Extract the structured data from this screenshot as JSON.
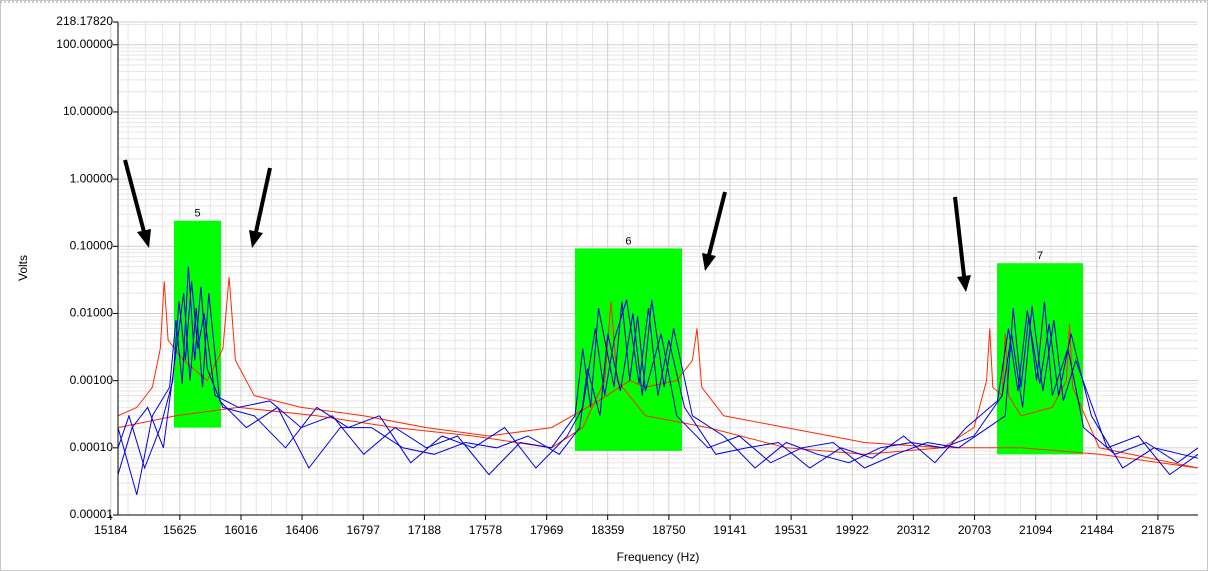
{
  "chart_data": {
    "type": "line",
    "x_label": "Frequency (Hz)",
    "y_label": "Volts",
    "log_y": true,
    "grid": true,
    "xlim": [
      15230,
      22131
    ],
    "ylim": [
      1e-05,
      218.1782
    ],
    "xticks": [
      15184,
      15625,
      16016,
      16406,
      16797,
      17188,
      17578,
      17969,
      18359,
      18750,
      19141,
      19531,
      19922,
      20312,
      20703,
      21094,
      21484,
      21875
    ],
    "yticks": [
      1e-05,
      {
        "value": 0.0001,
        "label": "0.00010"
      },
      {
        "value": 0.001,
        "label": "0.00100"
      },
      {
        "value": 0.01,
        "label": "0.01000"
      },
      {
        "value": 0.1,
        "label": "0.10000"
      },
      {
        "value": 1,
        "label": "1.00000"
      },
      {
        "value": 10,
        "label": "10.00000"
      },
      {
        "value": 100,
        "label": "100.00000"
      },
      {
        "value": 218.1782,
        "label": "218.17820"
      }
    ],
    "bands": [
      {
        "label": "5",
        "color": "#00ff00",
        "x0": 15588,
        "x1": 15888,
        "top": 0.24,
        "bottom": 0.0002
      },
      {
        "label": "6",
        "color": "#00ff00",
        "x0": 18150,
        "x1": 18834,
        "top": 0.093,
        "bottom": 9e-05
      },
      {
        "label": "7",
        "color": "#00ff00",
        "x0": 20847,
        "x1": 21396,
        "top": 0.056,
        "bottom": 8e-05
      }
    ],
    "series": [
      {
        "color": "#ff2a00",
        "x": [
          15230,
          15350,
          15450,
          15500,
          15525,
          15550,
          15650,
          15800,
          15900,
          15940,
          15980,
          16100,
          16400,
          16800,
          17200,
          17600,
          18000,
          18300,
          18500,
          18600,
          18800,
          18900,
          18930,
          18960,
          19100,
          19500,
          20000,
          20500,
          21000,
          21500,
          22131
        ],
        "values": [
          0.0003,
          0.0004,
          0.0008,
          0.003,
          0.03,
          0.004,
          0.002,
          0.001,
          0.003,
          0.035,
          0.002,
          0.0006,
          0.0004,
          0.0003,
          0.0002,
          0.00015,
          0.0002,
          0.0005,
          0.001,
          0.0008,
          0.001,
          0.002,
          0.006,
          0.0008,
          0.0003,
          0.0002,
          0.00012,
          0.0001,
          0.0001,
          8e-05,
          5e-05
        ]
      },
      {
        "color": "#ff2a00",
        "x": [
          15230,
          15600,
          16000,
          16500,
          17000,
          17500,
          18000,
          18200,
          18340,
          18380,
          18420,
          18600,
          19000,
          19500,
          20000,
          20500,
          20700,
          20780,
          20800,
          20820,
          20880,
          20900,
          20920,
          21000,
          21200,
          21290,
          21310,
          21330,
          21500,
          22131
        ],
        "values": [
          0.0002,
          0.0003,
          0.0004,
          0.0003,
          0.0002,
          0.00015,
          0.0001,
          0.0002,
          0.001,
          0.015,
          0.001,
          0.0003,
          0.0002,
          0.0001,
          8e-05,
          0.0001,
          0.0002,
          0.001,
          0.006,
          0.0008,
          0.0006,
          0.005,
          0.0006,
          0.0003,
          0.0004,
          0.001,
          0.007,
          0.0008,
          0.0001,
          5e-05
        ]
      },
      {
        "color": "#0000dd",
        "x": [
          15230,
          15300,
          15400,
          15500,
          15580,
          15620,
          15660,
          15700,
          15740,
          15780,
          15850,
          16000,
          16200,
          16400,
          16600,
          16800,
          17000,
          17200,
          17400,
          17600,
          17800,
          18000,
          18150,
          18200,
          18250,
          18300,
          18400,
          18450,
          18500,
          18550,
          18600,
          18700,
          18800,
          19000,
          19200,
          19400,
          19600,
          19800,
          20000,
          20200,
          20400,
          20600,
          20900,
          20950,
          21000,
          21050,
          21100,
          21150,
          21200,
          21300,
          21400,
          21600,
          21800,
          22000,
          22131
        ],
        "values": [
          0.0001,
          0.0003,
          5e-05,
          0.0002,
          0.001,
          0.015,
          0.002,
          0.03,
          0.003,
          0.01,
          0.0006,
          0.0004,
          0.0005,
          0.0002,
          0.0003,
          8e-05,
          0.0002,
          0.0001,
          0.00015,
          4e-05,
          0.00012,
          0.0001,
          0.0003,
          0.003,
          0.0004,
          0.012,
          0.0008,
          0.015,
          0.001,
          0.009,
          0.0007,
          0.005,
          0.0003,
          0.0001,
          0.00015,
          6e-05,
          0.0001,
          0.00012,
          5e-05,
          8e-05,
          0.00012,
          0.0001,
          0.0003,
          0.012,
          0.0008,
          0.009,
          0.001,
          0.015,
          0.0006,
          0.003,
          0.0002,
          8e-05,
          0.00012,
          6e-05,
          0.0001
        ]
      },
      {
        "color": "#0000dd",
        "x": [
          15230,
          15350,
          15450,
          15560,
          15600,
          15640,
          15680,
          15720,
          15760,
          15800,
          15900,
          16100,
          16300,
          16500,
          16700,
          16900,
          17100,
          17300,
          17500,
          17700,
          17900,
          18100,
          18200,
          18280,
          18340,
          18400,
          18480,
          18560,
          18620,
          18680,
          18750,
          18850,
          19050,
          19250,
          19450,
          19650,
          19850,
          20050,
          20250,
          20450,
          20650,
          20850,
          20920,
          20980,
          21040,
          21120,
          21180,
          21240,
          21320,
          21450,
          21650,
          21850,
          22131
        ],
        "values": [
          0.0002,
          2e-05,
          0.0003,
          0.0008,
          0.008,
          0.0009,
          0.05,
          0.002,
          0.025,
          0.0015,
          0.0004,
          0.0003,
          0.0001,
          0.0004,
          0.0002,
          0.0003,
          6e-05,
          0.00015,
          0.0001,
          0.0002,
          5e-05,
          0.00015,
          0.0004,
          0.006,
          0.0006,
          0.004,
          0.016,
          0.0009,
          0.012,
          0.0006,
          0.004,
          0.0004,
          8e-05,
          0.0001,
          0.00012,
          5e-05,
          0.0001,
          7e-05,
          0.00015,
          6e-05,
          0.0002,
          0.0005,
          0.006,
          0.0007,
          0.011,
          0.0009,
          0.007,
          0.0006,
          0.005,
          0.0003,
          5e-05,
          0.0001,
          7e-05
        ]
      },
      {
        "color": "#0000dd",
        "x": [
          15230,
          15320,
          15420,
          15520,
          15610,
          15650,
          15690,
          15730,
          15770,
          15810,
          15880,
          16050,
          16250,
          16450,
          16650,
          16850,
          17050,
          17250,
          17450,
          17650,
          17850,
          18050,
          18180,
          18230,
          18310,
          18360,
          18440,
          18520,
          18580,
          18640,
          18720,
          18780,
          18900,
          19100,
          19300,
          19500,
          19700,
          19900,
          20100,
          20300,
          20500,
          20700,
          20880,
          20940,
          21010,
          21070,
          21140,
          21210,
          21270,
          21350,
          21550,
          21750,
          21950,
          22131
        ],
        "values": [
          4e-05,
          0.0002,
          0.0004,
          0.0001,
          0.004,
          0.02,
          0.001,
          0.012,
          0.0008,
          0.02,
          0.0005,
          0.0002,
          0.0004,
          5e-05,
          0.0002,
          0.0002,
          0.0001,
          8e-05,
          0.00012,
          0.0001,
          0.00015,
          8e-05,
          0.0002,
          0.0015,
          0.0003,
          0.005,
          0.0007,
          0.01,
          0.0006,
          0.016,
          0.0008,
          0.006,
          0.0003,
          0.00015,
          5e-05,
          0.00012,
          8e-05,
          6e-05,
          0.0001,
          0.00012,
          0.0001,
          0.00015,
          0.0006,
          0.005,
          0.0004,
          0.013,
          0.0007,
          0.008,
          0.0005,
          0.002,
          0.0001,
          0.00015,
          4e-05,
          8e-05
        ]
      }
    ]
  }
}
